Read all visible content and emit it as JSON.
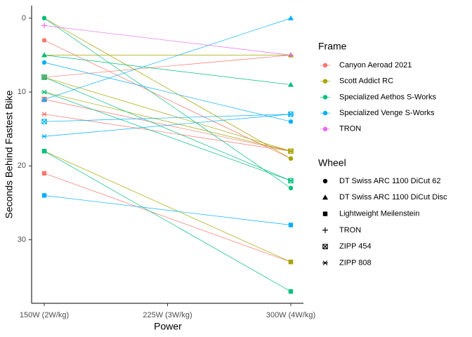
{
  "chart_data": {
    "type": "slope",
    "y_axis_label": "Seconds Behind Fastest Bike",
    "x_axis_label": "Power",
    "x": [
      150,
      300
    ],
    "xlim": [
      142.3,
      307.7
    ],
    "xticks": [
      {
        "value": 150,
        "label": "150W (2W/kg)"
      },
      {
        "value": 225,
        "label": "225W (3W/kg)"
      },
      {
        "value": 300,
        "label": "300W (4W/kg)"
      }
    ],
    "ylim": [
      -1.7,
      38.6
    ],
    "y_reversed": true,
    "yticks": [
      0,
      10,
      20,
      30
    ],
    "legend_frame_title": "Frame",
    "legend_wheel_title": "Wheel",
    "frames": [
      {
        "name": "Canyon Aeroad 2021",
        "color": "#F8766D"
      },
      {
        "name": "Scott Addict RC",
        "color": "#A3A500"
      },
      {
        "name": "Specialized Aethos S-Works",
        "color": "#00BF7D"
      },
      {
        "name": "Specialized Venge S-Works",
        "color": "#00B0F6"
      },
      {
        "name": "TRON",
        "color": "#E76BF3"
      }
    ],
    "wheels": [
      {
        "name": "DT Swiss ARC 1100 DiCut 62",
        "shape": "circle"
      },
      {
        "name": "DT Swiss ARC 1100 DiCut Disc",
        "shape": "triangle"
      },
      {
        "name": "Lightweight Meilenstein",
        "shape": "square"
      },
      {
        "name": "TRON",
        "shape": "plus"
      },
      {
        "name": "ZIPP 454",
        "shape": "boxx"
      },
      {
        "name": "ZIPP 808",
        "shape": "asterisk"
      }
    ],
    "series": [
      {
        "frame": "Canyon Aeroad 2021",
        "wheel": "DT Swiss ARC 1100 DiCut 62",
        "values": [
          3,
          19
        ]
      },
      {
        "frame": "Canyon Aeroad 2021",
        "wheel": "DT Swiss ARC 1100 DiCut Disc",
        "values": [
          8,
          5
        ]
      },
      {
        "frame": "Canyon Aeroad 2021",
        "wheel": "Lightweight Meilenstein",
        "values": [
          21,
          33
        ]
      },
      {
        "frame": "Canyon Aeroad 2021",
        "wheel": "ZIPP 454",
        "values": [
          11,
          18
        ]
      },
      {
        "frame": "Canyon Aeroad 2021",
        "wheel": "ZIPP 808",
        "values": [
          13,
          18
        ]
      },
      {
        "frame": "Scott Addict RC",
        "wheel": "DT Swiss ARC 1100 DiCut 62",
        "values": [
          0,
          19
        ]
      },
      {
        "frame": "Scott Addict RC",
        "wheel": "DT Swiss ARC 1100 DiCut Disc",
        "values": [
          5,
          5
        ]
      },
      {
        "frame": "Scott Addict RC",
        "wheel": "Lightweight Meilenstein",
        "values": [
          18,
          33
        ]
      },
      {
        "frame": "Scott Addict RC",
        "wheel": "ZIPP 454",
        "values": [
          8,
          18
        ]
      },
      {
        "frame": "Scott Addict RC",
        "wheel": "ZIPP 808",
        "values": [
          10,
          18
        ]
      },
      {
        "frame": "Specialized Aethos S-Works",
        "wheel": "DT Swiss ARC 1100 DiCut 62",
        "values": [
          0,
          23
        ]
      },
      {
        "frame": "Specialized Aethos S-Works",
        "wheel": "DT Swiss ARC 1100 DiCut Disc",
        "values": [
          5,
          9
        ]
      },
      {
        "frame": "Specialized Aethos S-Works",
        "wheel": "Lightweight Meilenstein",
        "values": [
          18,
          37
        ]
      },
      {
        "frame": "Specialized Aethos S-Works",
        "wheel": "ZIPP 454",
        "values": [
          8,
          22
        ]
      },
      {
        "frame": "Specialized Aethos S-Works",
        "wheel": "ZIPP 808",
        "values": [
          10,
          22
        ]
      },
      {
        "frame": "Specialized Venge S-Works",
        "wheel": "DT Swiss ARC 1100 DiCut 62",
        "values": [
          6,
          14
        ]
      },
      {
        "frame": "Specialized Venge S-Works",
        "wheel": "DT Swiss ARC 1100 DiCut Disc",
        "values": [
          11,
          0
        ]
      },
      {
        "frame": "Specialized Venge S-Works",
        "wheel": "Lightweight Meilenstein",
        "values": [
          24,
          28
        ]
      },
      {
        "frame": "Specialized Venge S-Works",
        "wheel": "ZIPP 454",
        "values": [
          14,
          13
        ]
      },
      {
        "frame": "Specialized Venge S-Works",
        "wheel": "ZIPP 808",
        "values": [
          16,
          13
        ]
      },
      {
        "frame": "TRON",
        "wheel": "TRON",
        "values": [
          1,
          5
        ]
      }
    ]
  }
}
